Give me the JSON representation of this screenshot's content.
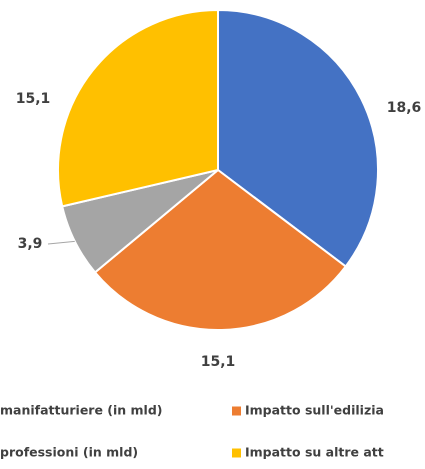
{
  "chart_data": {
    "type": "pie",
    "categories": [
      "manifatturiere (in mld)",
      "Impatto sull'edilizia",
      "professioni (in mld)",
      "Impatto su altre att"
    ],
    "values": [
      18.6,
      15.1,
      3.9,
      15.1
    ],
    "value_labels": [
      "18,6",
      "15,1",
      "3,9",
      "15,1"
    ],
    "colors": [
      "#4472c4",
      "#ed7d31",
      "#a5a5a5",
      "#ffc000"
    ]
  }
}
